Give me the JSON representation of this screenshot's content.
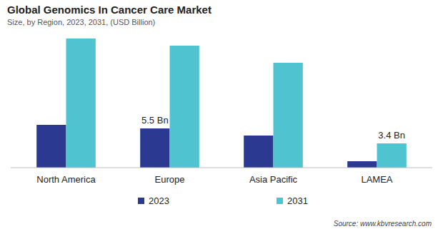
{
  "chart_data": {
    "type": "bar",
    "title": "Global Genomics In Cancer Care Market",
    "subtitle": "Size, by Region, 2023, 2031, (USD Billion)",
    "categories": [
      "North America",
      "Europe",
      "Asia Pacific",
      "LAMEA"
    ],
    "series": [
      {
        "name": "2023",
        "color": "#2b3990",
        "values": [
          6.0,
          5.5,
          4.5,
          0.9
        ],
        "value_labels": [
          null,
          "5.5 Bn",
          null,
          null
        ]
      },
      {
        "name": "2031",
        "color": "#4fc3d0",
        "values": [
          18.1,
          17.1,
          14.7,
          3.4
        ],
        "value_labels": [
          null,
          null,
          null,
          "3.4 Bn"
        ]
      }
    ],
    "data_labels": true,
    "tick_labels": "x",
    "legend": "bottom",
    "annotations": [
      "Source: www.kbvresearch.com"
    ]
  }
}
